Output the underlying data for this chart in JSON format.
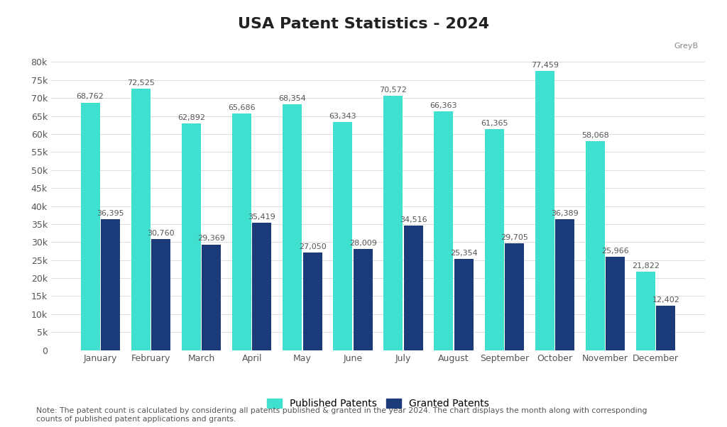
{
  "title": "USA Patent Statistics - 2024",
  "months": [
    "January",
    "February",
    "March",
    "April",
    "May",
    "June",
    "July",
    "August",
    "September",
    "October",
    "November",
    "December"
  ],
  "published": [
    68762,
    72525,
    62892,
    65686,
    68354,
    63343,
    70572,
    66363,
    61365,
    77459,
    58068,
    21822
  ],
  "granted": [
    36395,
    30760,
    29369,
    35419,
    27050,
    28009,
    34516,
    25354,
    29705,
    36389,
    25966,
    12402
  ],
  "published_color": "#40E0D0",
  "granted_color": "#1B3A7A",
  "background_color": "#FFFFFF",
  "title_fontsize": 16,
  "label_fontsize": 8.0,
  "tick_fontsize": 9,
  "note_text": "Note: The patent count is calculated by considering all patents published & granted in the year 2024. The chart displays the month along with corresponding\ncounts of published patent applications and grants.",
  "ylim": [
    0,
    83000
  ],
  "yticks": [
    0,
    5000,
    10000,
    15000,
    20000,
    25000,
    30000,
    35000,
    40000,
    45000,
    50000,
    55000,
    60000,
    65000,
    70000,
    75000,
    80000
  ],
  "legend_labels": [
    "Published Patents",
    "Granted Patents"
  ]
}
